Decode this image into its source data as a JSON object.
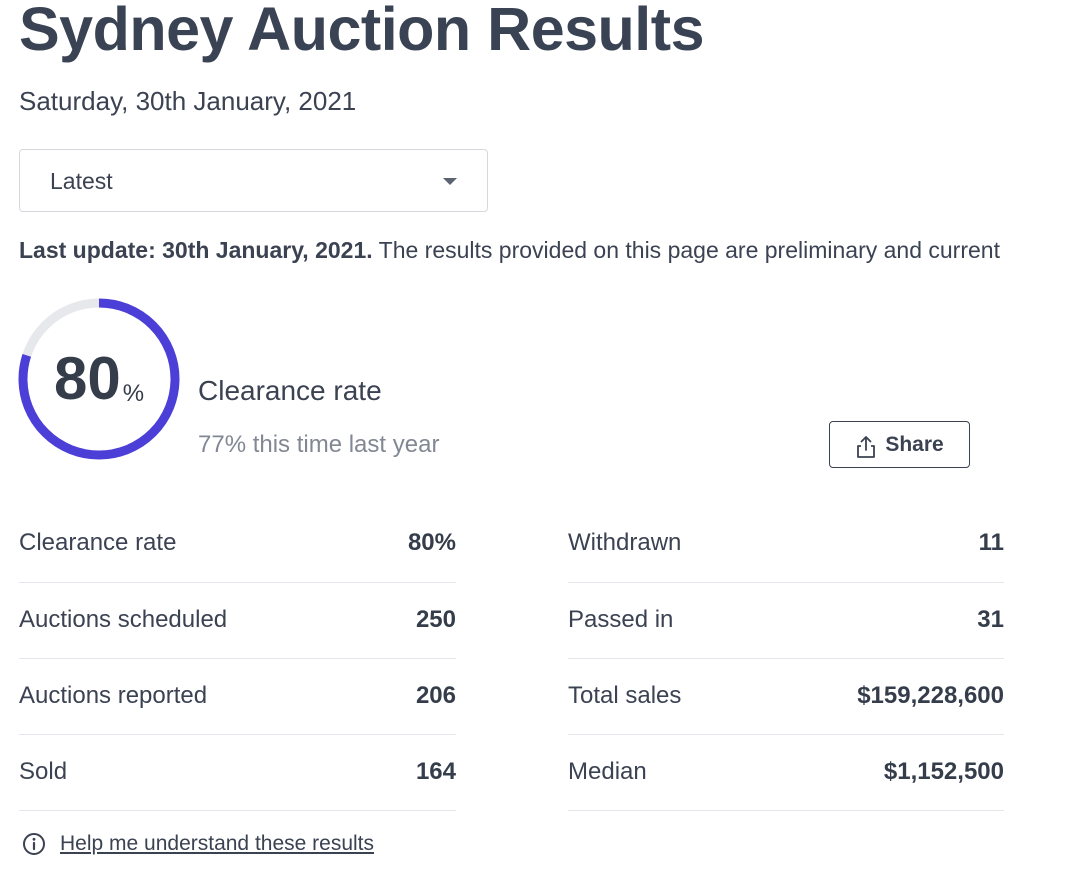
{
  "header": {
    "title": "Sydney Auction Results",
    "date": "Saturday, 30th January, 2021"
  },
  "period_select": {
    "selected": "Latest"
  },
  "update": {
    "label": "Last update: 30th January, 2021.",
    "text": "The results provided on this page are preliminary and current"
  },
  "clearance": {
    "value": "80",
    "unit": "%",
    "rate_fraction": 0.8,
    "label": "Clearance rate",
    "comparison": "77% this time last year",
    "ring_color": "#4b3fd8",
    "track_color": "#e6e8ec"
  },
  "share": {
    "label": "Share",
    "icon": "share-icon"
  },
  "stats_left": [
    {
      "label": "Clearance rate",
      "value": "80%"
    },
    {
      "label": "Auctions scheduled",
      "value": "250"
    },
    {
      "label": "Auctions reported",
      "value": "206"
    },
    {
      "label": "Sold",
      "value": "164"
    }
  ],
  "stats_right": [
    {
      "label": "Withdrawn",
      "value": "11"
    },
    {
      "label": "Passed in",
      "value": "31"
    },
    {
      "label": "Total sales",
      "value": "$159,228,600"
    },
    {
      "label": "Median",
      "value": "$1,152,500"
    }
  ],
  "help": {
    "label": "Help me understand these results",
    "icon": "info-icon"
  }
}
